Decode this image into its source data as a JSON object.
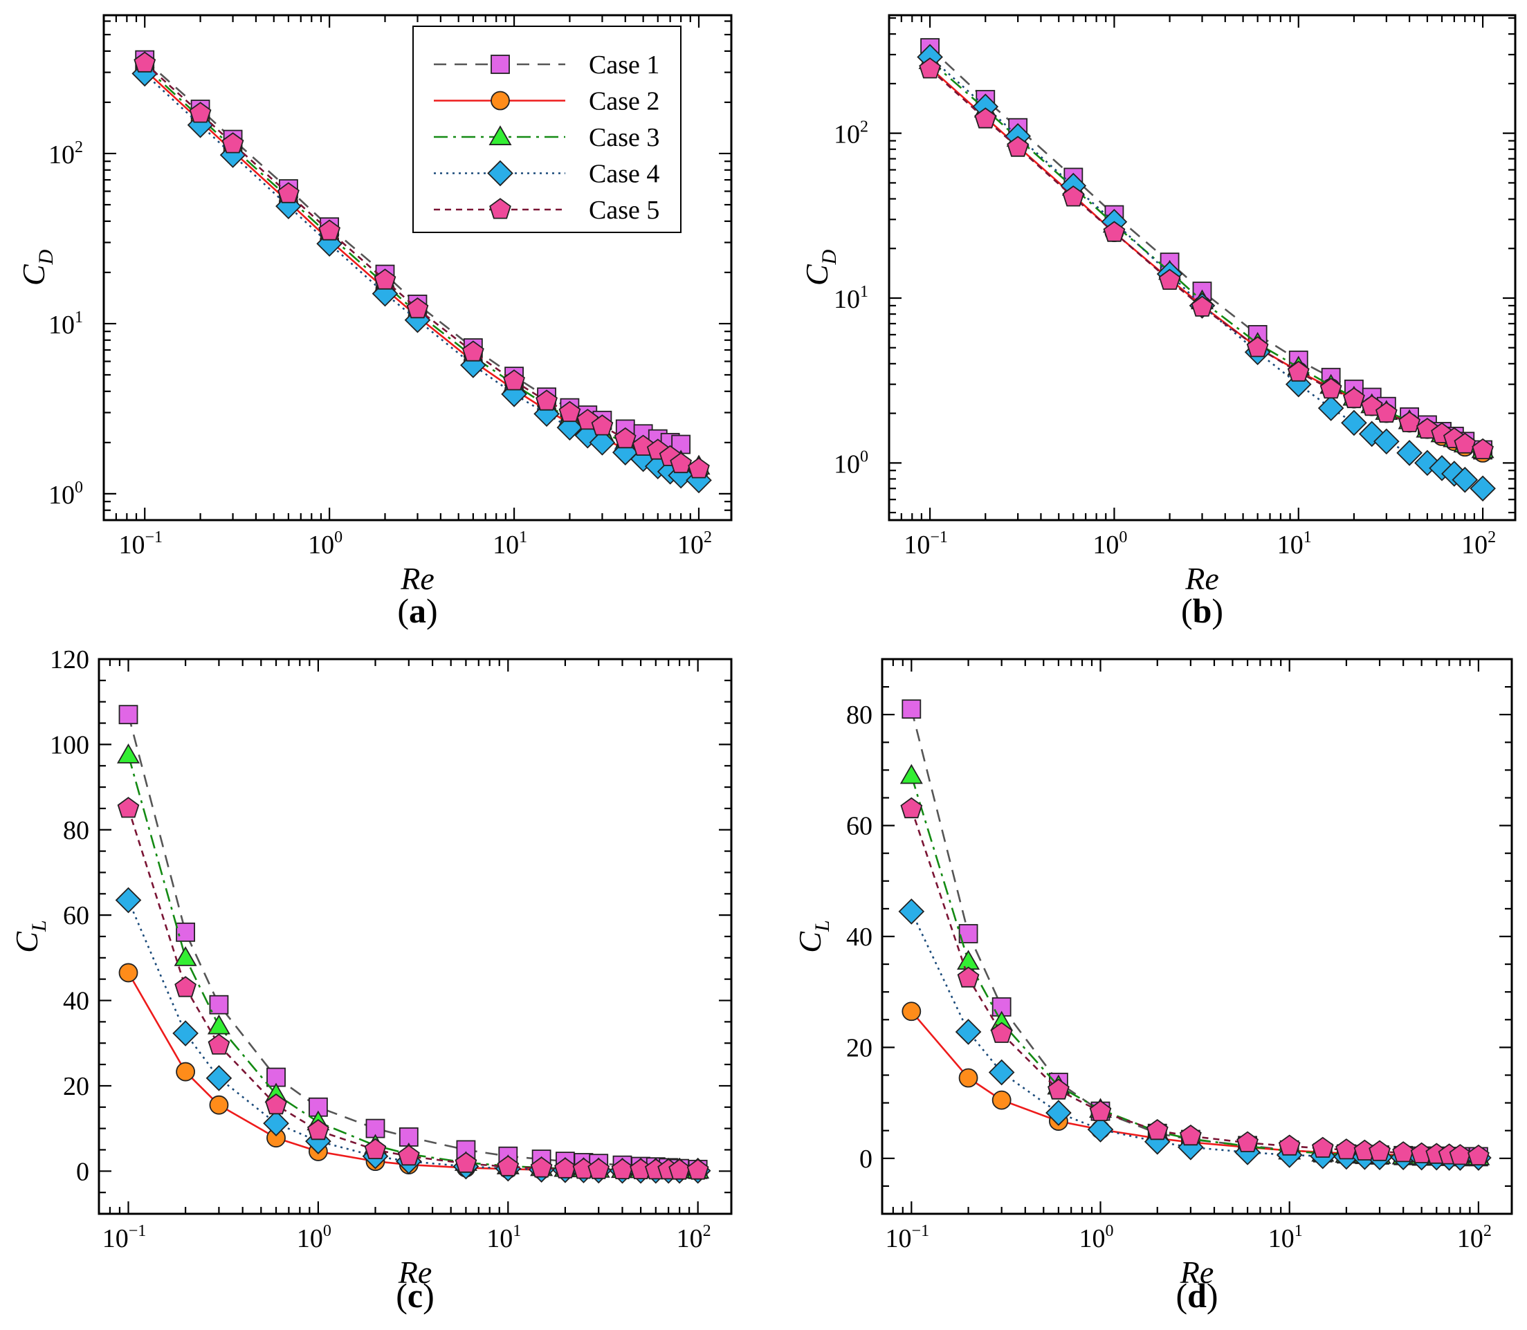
{
  "series_styles": [
    {
      "name": "Case 1",
      "line": "#555555",
      "dash": "18,12",
      "marker": "square",
      "fill": "#e066e6"
    },
    {
      "name": "Case 2",
      "line": "#ee1b1b",
      "dash": "",
      "marker": "circle",
      "fill": "#ff8c1a"
    },
    {
      "name": "Case 3",
      "line": "#138a13",
      "dash": "20,8,4,8",
      "marker": "triangle",
      "fill": "#33ee33"
    },
    {
      "name": "Case 4",
      "line": "#1a4a7a",
      "dash": "3,6",
      "marker": "diamond",
      "fill": "#2aaee8"
    },
    {
      "name": "Case 5",
      "line": "#7a1434",
      "dash": "9,7",
      "marker": "pentagon",
      "fill": "#ee4a9a"
    }
  ],
  "chart_data": [
    {
      "panel": "(a)",
      "type": "line",
      "xlabel": "Re",
      "ylabel": "C",
      "ylabel_sub": "D",
      "xscale": "log",
      "yscale": "log",
      "xlim": [
        0.06,
        150
      ],
      "ylim": [
        0.7,
        650
      ],
      "xticks": [
        {
          "v": 0.1,
          "base": "10",
          "exp": "−1"
        },
        {
          "v": 1,
          "base": "10",
          "exp": "0"
        },
        {
          "v": 10,
          "base": "10",
          "exp": "1"
        },
        {
          "v": 100,
          "base": "10",
          "exp": "2"
        }
      ],
      "yticks": [
        {
          "v": 1,
          "base": "10",
          "exp": "0"
        },
        {
          "v": 10,
          "base": "10",
          "exp": "1"
        },
        {
          "v": 100,
          "base": "10",
          "exp": "2"
        }
      ],
      "legend": "top-right",
      "x": [
        0.1,
        0.2,
        0.3,
        0.6,
        1,
        2,
        3,
        6,
        10,
        15,
        20,
        25,
        30,
        40,
        50,
        60,
        70,
        80,
        100
      ],
      "series": [
        {
          "name": "Case 1",
          "values": [
            355,
            182,
            121,
            62,
            37,
            19.5,
            13,
            7.2,
            4.9,
            3.7,
            3.2,
            2.9,
            2.7,
            2.4,
            2.25,
            2.1,
            2.0,
            1.95,
            null
          ]
        },
        {
          "name": "Case 2",
          "values": [
            310,
            155,
            103,
            52,
            31,
            16,
            11,
            6.0,
            4.1,
            3.1,
            2.6,
            2.35,
            2.1,
            1.85,
            1.7,
            1.6,
            1.5,
            1.45,
            1.35
          ]
        },
        {
          "name": "Case 3",
          "values": [
            325,
            162,
            108,
            55,
            33,
            17,
            11.5,
            6.4,
            4.4,
            3.3,
            2.8,
            2.5,
            2.3,
            2.0,
            1.85,
            1.75,
            1.65,
            1.55,
            1.45
          ]
        },
        {
          "name": "Case 4",
          "values": [
            295,
            147,
            98,
            49,
            29.5,
            15,
            10.5,
            5.7,
            3.85,
            2.95,
            2.45,
            2.2,
            2.0,
            1.75,
            1.6,
            1.45,
            1.35,
            1.28,
            1.2
          ]
        },
        {
          "name": "Case 5",
          "values": [
            340,
            172,
            114,
            58,
            35,
            18,
            12.2,
            6.8,
            4.6,
            3.5,
            3.0,
            2.7,
            2.5,
            2.1,
            1.9,
            1.8,
            1.65,
            1.5,
            1.4
          ]
        }
      ]
    },
    {
      "panel": "(b)",
      "type": "line",
      "xlabel": "Re",
      "ylabel": "C",
      "ylabel_sub": "D",
      "xscale": "log",
      "yscale": "log",
      "xlim": [
        0.06,
        150
      ],
      "ylim": [
        0.45,
        520
      ],
      "xticks": [
        {
          "v": 0.1,
          "base": "10",
          "exp": "−1"
        },
        {
          "v": 1,
          "base": "10",
          "exp": "0"
        },
        {
          "v": 10,
          "base": "10",
          "exp": "1"
        },
        {
          "v": 100,
          "base": "10",
          "exp": "2"
        }
      ],
      "yticks": [
        {
          "v": 1,
          "base": "10",
          "exp": "0"
        },
        {
          "v": 10,
          "base": "10",
          "exp": "1"
        },
        {
          "v": 100,
          "base": "10",
          "exp": "2"
        }
      ],
      "x": [
        0.1,
        0.2,
        0.3,
        0.6,
        1,
        2,
        3,
        6,
        10,
        15,
        20,
        25,
        30,
        40,
        50,
        60,
        70,
        80,
        100
      ],
      "series": [
        {
          "name": "Case 1",
          "values": [
            330,
            160,
            108,
            54,
            32,
            16.5,
            11,
            6.0,
            4.2,
            3.3,
            2.8,
            2.5,
            2.2,
            1.9,
            1.7,
            1.55,
            1.45,
            1.35,
            1.2
          ]
        },
        {
          "name": "Case 2",
          "values": [
            250,
            125,
            83,
            42,
            25,
            13,
            9.0,
            5.0,
            3.6,
            2.85,
            2.45,
            2.2,
            2.0,
            1.75,
            1.6,
            1.45,
            1.35,
            1.25,
            1.15
          ]
        },
        {
          "name": "Case 3",
          "values": [
            275,
            140,
            93,
            47,
            28,
            14.5,
            9.6,
            5.3,
            3.8,
            2.95,
            2.5,
            2.25,
            2.05,
            1.8,
            1.6,
            1.5,
            1.4,
            1.3,
            1.2
          ]
        },
        {
          "name": "Case 4",
          "values": [
            290,
            145,
            96,
            48,
            29,
            14,
            9.0,
            4.7,
            3.0,
            2.15,
            1.75,
            1.5,
            1.35,
            1.15,
            1.0,
            0.93,
            0.86,
            0.79,
            0.7
          ]
        },
        {
          "name": "Case 5",
          "values": [
            245,
            122,
            82,
            41,
            25,
            12.8,
            8.8,
            5.0,
            3.55,
            2.8,
            2.45,
            2.2,
            2.0,
            1.75,
            1.6,
            1.5,
            1.4,
            1.3,
            1.2
          ]
        }
      ]
    },
    {
      "panel": "(c)",
      "type": "line",
      "xlabel": "Re",
      "ylabel": "C",
      "ylabel_sub": "L",
      "xscale": "log",
      "yscale": "linear",
      "xlim": [
        0.07,
        150
      ],
      "ylim": [
        -10,
        120
      ],
      "xticks": [
        {
          "v": 0.1,
          "base": "10",
          "exp": "−1"
        },
        {
          "v": 1,
          "base": "10",
          "exp": "0"
        },
        {
          "v": 10,
          "base": "10",
          "exp": "1"
        },
        {
          "v": 100,
          "base": "10",
          "exp": "2"
        }
      ],
      "yticks": [
        {
          "v": 0,
          "label": "0"
        },
        {
          "v": 20,
          "label": "20"
        },
        {
          "v": 40,
          "label": "40"
        },
        {
          "v": 60,
          "label": "60"
        },
        {
          "v": 80,
          "label": "80"
        },
        {
          "v": 100,
          "label": "100"
        },
        {
          "v": 120,
          "label": "120"
        }
      ],
      "x": [
        0.1,
        0.2,
        0.3,
        0.6,
        1,
        2,
        3,
        6,
        10,
        15,
        20,
        25,
        30,
        40,
        50,
        60,
        70,
        80,
        100
      ],
      "series": [
        {
          "name": "Case 1",
          "values": [
            107,
            56,
            39,
            22,
            15,
            10,
            8,
            5,
            3.5,
            2.8,
            2.3,
            2.0,
            1.8,
            1.4,
            1.1,
            1.0,
            0.8,
            0.6,
            0.4
          ]
        },
        {
          "name": "Case 2",
          "values": [
            46.5,
            23.3,
            15.5,
            7.8,
            4.6,
            2.3,
            1.5,
            0.8,
            0.5,
            0.3,
            0.25,
            0.2,
            0.2,
            0.15,
            0.1,
            0.1,
            0.1,
            0.1,
            0.1
          ]
        },
        {
          "name": "Case 3",
          "values": [
            97.5,
            50,
            34,
            18,
            11.5,
            6,
            4,
            2,
            1.2,
            0.8,
            0.6,
            0.5,
            0.4,
            0.35,
            0.3,
            0.3,
            0.25,
            0.2,
            0.2
          ]
        },
        {
          "name": "Case 4",
          "values": [
            63.5,
            32.3,
            21.8,
            11.2,
            7.0,
            3.5,
            2.3,
            1.1,
            0.6,
            0.35,
            0.25,
            0.2,
            0.15,
            0.1,
            0.1,
            0.1,
            0.1,
            0.1,
            0.1
          ]
        },
        {
          "name": "Case 5",
          "values": [
            85,
            43,
            29.5,
            15.5,
            9.5,
            5,
            3.5,
            1.8,
            1.0,
            0.7,
            0.5,
            0.4,
            0.35,
            0.3,
            0.3,
            0.25,
            0.25,
            0.2,
            0.2
          ]
        }
      ]
    },
    {
      "panel": "(d)",
      "type": "line",
      "xlabel": "Re",
      "ylabel": "C",
      "ylabel_sub": "L",
      "xscale": "log",
      "yscale": "linear",
      "xlim": [
        0.07,
        150
      ],
      "ylim": [
        -10,
        90
      ],
      "xticks": [
        {
          "v": 0.1,
          "base": "10",
          "exp": "−1"
        },
        {
          "v": 1,
          "base": "10",
          "exp": "0"
        },
        {
          "v": 10,
          "base": "10",
          "exp": "1"
        },
        {
          "v": 100,
          "base": "10",
          "exp": "2"
        }
      ],
      "yticks": [
        {
          "v": 0,
          "label": "0"
        },
        {
          "v": 20,
          "label": "20"
        },
        {
          "v": 40,
          "label": "40"
        },
        {
          "v": 60,
          "label": "60"
        },
        {
          "v": 80,
          "label": "80"
        }
      ],
      "x": [
        0.1,
        0.2,
        0.3,
        0.6,
        1,
        2,
        3,
        6,
        10,
        15,
        20,
        25,
        30,
        40,
        50,
        60,
        70,
        80,
        100
      ],
      "series": [
        {
          "name": "Case 1",
          "values": [
            81,
            40.5,
            27.3,
            13.7,
            8.5,
            4.5,
            3.4,
            2.3,
            1.5,
            1.0,
            0.8,
            0.7,
            0.6,
            0.5,
            0.4,
            0.4,
            0.35,
            0.3,
            0.3
          ]
        },
        {
          "name": "Case 2",
          "values": [
            26.5,
            14.5,
            10.5,
            6.7,
            5.2,
            3.6,
            2.9,
            2.0,
            1.4,
            1.1,
            0.9,
            0.8,
            0.7,
            0.6,
            0.5,
            0.45,
            0.4,
            0.4,
            0.35
          ]
        },
        {
          "name": "Case 3",
          "values": [
            69,
            35.5,
            24.5,
            13.0,
            8.8,
            4.8,
            3.5,
            2.2,
            1.3,
            0.9,
            0.7,
            0.6,
            0.5,
            0.4,
            0.35,
            0.3,
            0.3,
            0.25,
            0.25
          ]
        },
        {
          "name": "Case 4",
          "values": [
            44.5,
            22.8,
            15.5,
            8.2,
            5.2,
            3.0,
            2.0,
            1.1,
            0.6,
            0.4,
            0.3,
            0.25,
            0.2,
            0.2,
            0.15,
            0.15,
            0.1,
            0.1,
            0.1
          ]
        },
        {
          "name": "Case 5",
          "values": [
            63,
            32.5,
            22.5,
            12.3,
            8.4,
            5.0,
            4.0,
            2.8,
            2.2,
            1.8,
            1.5,
            1.3,
            1.2,
            1.0,
            0.8,
            0.7,
            0.6,
            0.5,
            0.4
          ]
        }
      ]
    }
  ]
}
